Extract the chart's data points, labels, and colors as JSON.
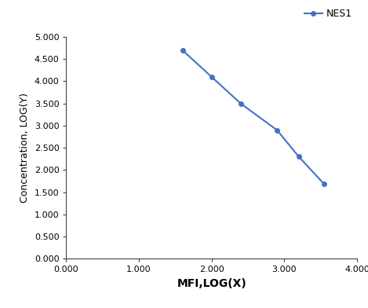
{
  "x": [
    1.6,
    2.0,
    2.4,
    2.9,
    3.2,
    3.55
  ],
  "y": [
    4.7,
    4.1,
    3.5,
    2.9,
    2.3,
    1.68
  ],
  "line_color": "#4472C4",
  "marker": "o",
  "marker_size": 4,
  "line_width": 1.5,
  "legend_label": "NES1",
  "xlabel": "MFI,LOG(X)",
  "ylabel": "Concentration, LOG(Y)",
  "xlim": [
    0.0,
    4.0
  ],
  "ylim": [
    0.0,
    5.0
  ],
  "xticks": [
    0.0,
    1.0,
    2.0,
    3.0,
    4.0
  ],
  "yticks": [
    0.0,
    0.5,
    1.0,
    1.5,
    2.0,
    2.5,
    3.0,
    3.5,
    4.0,
    4.5,
    5.0
  ],
  "xtick_labels": [
    "0.000",
    "1.000",
    "2.000",
    "3.000",
    "4.000"
  ],
  "ytick_labels": [
    "0.000",
    "0.500",
    "1.000",
    "1.500",
    "2.000",
    "2.500",
    "3.000",
    "3.500",
    "4.000",
    "4.500",
    "5.000"
  ],
  "xlabel_fontsize": 10,
  "ylabel_fontsize": 9,
  "tick_fontsize": 8,
  "legend_fontsize": 9,
  "background_color": "#ffffff",
  "spine_color": "#404040"
}
